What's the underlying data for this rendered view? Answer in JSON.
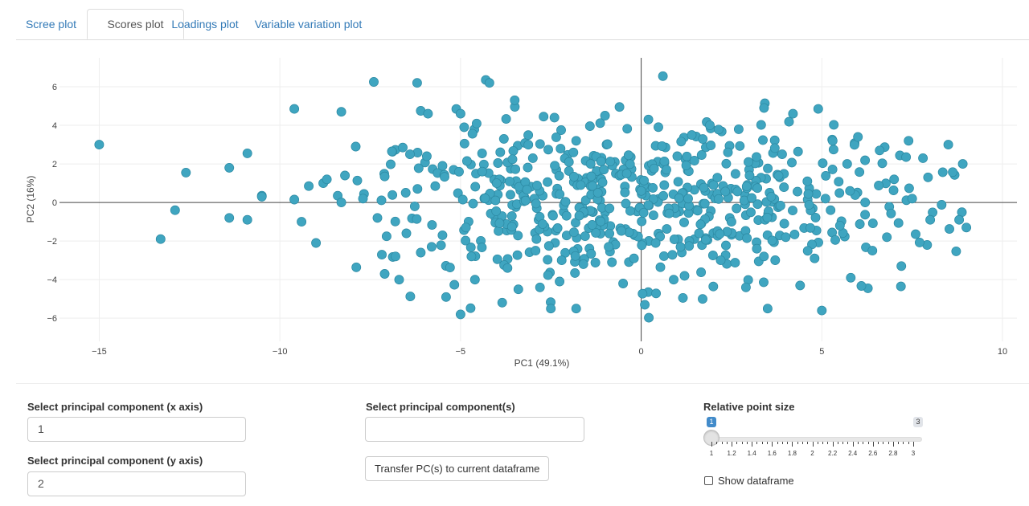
{
  "tabs": [
    {
      "label": "Scree plot",
      "active": false
    },
    {
      "label": "Scores plot",
      "active": true
    },
    {
      "label": "Loadings plot",
      "active": false
    },
    {
      "label": "Variable variation plot",
      "active": false
    }
  ],
  "chart_data": {
    "type": "scatter",
    "title": "",
    "xlabel": "PC1 (49.1%)",
    "ylabel": "PC2 (16%)",
    "xlim": [
      -16.1,
      10.4
    ],
    "ylim": [
      -7.2,
      7.5
    ],
    "xticks": [
      -15,
      -10,
      -5,
      0,
      5,
      10
    ],
    "yticks": [
      -6,
      -4,
      -2,
      0,
      2,
      4,
      6
    ],
    "xtick_labels": [
      "−15",
      "−10",
      "−5",
      "0",
      "5",
      "10"
    ],
    "ytick_labels": [
      "−6",
      "−4",
      "−2",
      "0",
      "2",
      "4",
      "6"
    ],
    "grid": true,
    "zero_lines": true,
    "marker_color": "#3fa5c0",
    "series": [
      {
        "points": [
          [
            -15.0,
            3.0
          ],
          [
            -13.3,
            -1.9
          ],
          [
            -12.9,
            -0.4
          ],
          [
            -12.6,
            1.55
          ],
          [
            -11.4,
            1.8
          ],
          [
            -11.4,
            -0.8
          ],
          [
            -10.9,
            -0.9
          ],
          [
            -10.9,
            2.55
          ],
          [
            -10.5,
            0.35
          ],
          [
            -10.5,
            0.3
          ],
          [
            -9.6,
            4.85
          ],
          [
            -9.6,
            0.15
          ],
          [
            -9.4,
            -1.0
          ],
          [
            -9.2,
            0.85
          ],
          [
            -9.0,
            -2.1
          ],
          [
            -8.8,
            1.0
          ],
          [
            -8.7,
            1.2
          ],
          [
            -8.3,
            4.7
          ],
          [
            -8.4,
            0.35
          ],
          [
            -8.3,
            0.0
          ],
          [
            -8.2,
            1.4
          ],
          [
            -7.9,
            2.9
          ],
          [
            -7.7,
            0.2
          ],
          [
            -7.4,
            6.25
          ],
          [
            -7.3,
            -0.8
          ],
          [
            -7.1,
            1.35
          ],
          [
            -7.1,
            -3.7
          ],
          [
            -6.9,
            2.65
          ],
          [
            -6.8,
            -2.8
          ],
          [
            -6.7,
            -4.0
          ],
          [
            -6.6,
            2.85
          ],
          [
            -6.5,
            -1.6
          ],
          [
            -6.4,
            2.5
          ],
          [
            -6.2,
            6.2
          ],
          [
            -6.1,
            4.75
          ],
          [
            -6.1,
            -2.6
          ],
          [
            -5.9,
            4.6
          ],
          [
            -5.8,
            -2.3
          ],
          [
            -5.7,
            0.85
          ],
          [
            -5.5,
            -1.7
          ],
          [
            -5.4,
            -4.9
          ],
          [
            -5.5,
            1.9
          ],
          [
            -5.0,
            4.6
          ],
          [
            -5.0,
            -5.8
          ],
          [
            -4.9,
            3.9
          ],
          [
            -4.7,
            -2.8
          ],
          [
            -4.6,
            -4.0
          ],
          [
            -4.4,
            1.6
          ],
          [
            -4.3,
            6.35
          ],
          [
            -4.2,
            6.2
          ],
          [
            -4.0,
            1.0
          ],
          [
            -3.8,
            3.3
          ],
          [
            -3.7,
            -3.4
          ],
          [
            -3.5,
            5.3
          ],
          [
            -3.4,
            -4.5
          ],
          [
            -3.2,
            0.1
          ],
          [
            -3.0,
            2.3
          ],
          [
            -2.9,
            -1.9
          ],
          [
            -2.8,
            -4.4
          ],
          [
            -2.7,
            4.45
          ],
          [
            -2.5,
            -5.5
          ],
          [
            -2.4,
            4.4
          ],
          [
            -2.2,
            -3.0
          ],
          [
            -2.0,
            2.1
          ],
          [
            -1.8,
            3.2
          ],
          [
            -1.8,
            -5.5
          ],
          [
            -1.6,
            -3.2
          ],
          [
            -1.4,
            2.0
          ],
          [
            -1.2,
            0.5
          ],
          [
            -1.0,
            4.5
          ],
          [
            -0.9,
            -2.3
          ],
          [
            -0.6,
            4.95
          ],
          [
            -0.5,
            -4.2
          ],
          [
            -0.4,
            1.5
          ],
          [
            -0.2,
            -2.9
          ],
          [
            0.0,
            0.6
          ],
          [
            0.1,
            -5.3
          ],
          [
            0.2,
            4.3
          ],
          [
            0.4,
            -2.1
          ],
          [
            0.6,
            6.55
          ],
          [
            0.7,
            1.7
          ],
          [
            0.9,
            -4.0
          ],
          [
            1.0,
            2.4
          ],
          [
            1.2,
            -3.8
          ],
          [
            1.3,
            0.2
          ],
          [
            1.4,
            3.5
          ],
          [
            1.6,
            -1.6
          ],
          [
            1.7,
            -5.0
          ],
          [
            1.9,
            4.0
          ],
          [
            2.0,
            0.9
          ],
          [
            2.2,
            -3.0
          ],
          [
            2.4,
            2.6
          ],
          [
            2.5,
            -1.0
          ],
          [
            2.7,
            3.8
          ],
          [
            2.9,
            -4.4
          ],
          [
            3.0,
            1.4
          ],
          [
            3.2,
            -2.4
          ],
          [
            3.4,
            4.9
          ],
          [
            3.5,
            -5.5
          ],
          [
            3.6,
            0.3
          ],
          [
            3.9,
            2.5
          ],
          [
            4.0,
            -1.8
          ],
          [
            4.2,
            4.6
          ],
          [
            4.4,
            -4.3
          ],
          [
            4.6,
            1.1
          ],
          [
            4.8,
            -2.9
          ],
          [
            4.9,
            4.85
          ],
          [
            5.0,
            -5.6
          ],
          [
            5.1,
            0.2
          ],
          [
            5.3,
            3.2
          ],
          [
            5.5,
            -1.2
          ],
          [
            5.7,
            2.0
          ],
          [
            5.8,
            -3.9
          ],
          [
            6.0,
            3.4
          ],
          [
            6.2,
            0.0
          ],
          [
            6.4,
            -2.5
          ],
          [
            6.6,
            2.7
          ],
          [
            6.8,
            -1.8
          ],
          [
            7.0,
            1.2
          ],
          [
            7.2,
            -3.3
          ],
          [
            7.4,
            3.2
          ],
          [
            7.5,
            0.2
          ],
          [
            7.8,
            2.3
          ],
          [
            8.0,
            -0.9
          ],
          [
            8.5,
            3.0
          ],
          [
            8.8,
            -0.9
          ],
          [
            8.9,
            2.0
          ],
          [
            9.0,
            -1.3
          ]
        ]
      }
    ],
    "cloud": {
      "n": 560,
      "x_center": 0.2,
      "x_spread": 4.2,
      "y_spread": 2.1,
      "seed": 7
    }
  },
  "controls": {
    "x_axis": {
      "label": "Select principal component (x axis)",
      "value": "1"
    },
    "y_axis": {
      "label": "Select principal component (y axis)",
      "value": "2"
    },
    "components": {
      "label": "Select principal component(s)",
      "value": ""
    },
    "transfer_button": "Transfer PC(s) to current dataframe",
    "point_size": {
      "label": "Relative point size",
      "min": 1,
      "max": 3,
      "value": 1,
      "min_label": "1",
      "max_label": "3",
      "tick_labels": [
        "1",
        "1.2",
        "1.4",
        "1.6",
        "1.8",
        "2",
        "2.2",
        "2.4",
        "2.6",
        "2.8",
        "3"
      ]
    },
    "show_dataframe": {
      "label": "Show dataframe",
      "checked": false
    }
  }
}
